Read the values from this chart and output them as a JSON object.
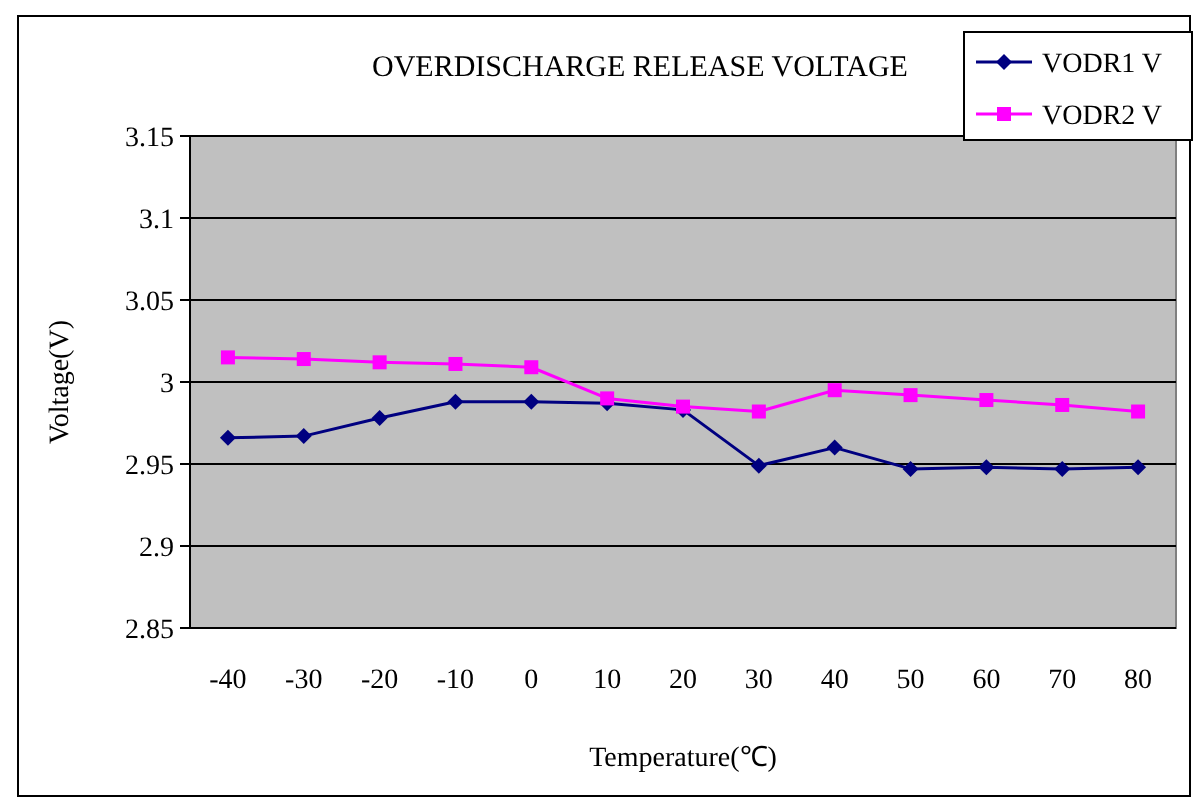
{
  "chart_data": {
    "type": "line",
    "title": "OVERDISCHARGE RELEASE VOLTAGE",
    "xlabel": "Temperature(℃)",
    "ylabel": "Voltage(V)",
    "categories": [
      "-40",
      "-30",
      "-20",
      "-10",
      "0",
      "10",
      "20",
      "30",
      "40",
      "50",
      "60",
      "70",
      "80"
    ],
    "series": [
      {
        "name": "VODR1 V",
        "color": "#000080",
        "marker": "diamond",
        "values": [
          2.966,
          2.967,
          2.978,
          2.988,
          2.988,
          2.987,
          2.983,
          2.949,
          2.96,
          2.947,
          2.948,
          2.947,
          2.948
        ]
      },
      {
        "name": "VODR2 V",
        "color": "#ff00ff",
        "marker": "square",
        "values": [
          3.015,
          3.014,
          3.012,
          3.011,
          3.009,
          2.99,
          2.985,
          2.982,
          2.995,
          2.992,
          2.989,
          2.986,
          2.982
        ]
      }
    ],
    "ylim": [
      2.85,
      3.15
    ],
    "yticks": [
      2.85,
      2.9,
      2.95,
      3,
      3.05,
      3.1,
      3.15
    ],
    "grid": "y",
    "legend": "top right"
  }
}
